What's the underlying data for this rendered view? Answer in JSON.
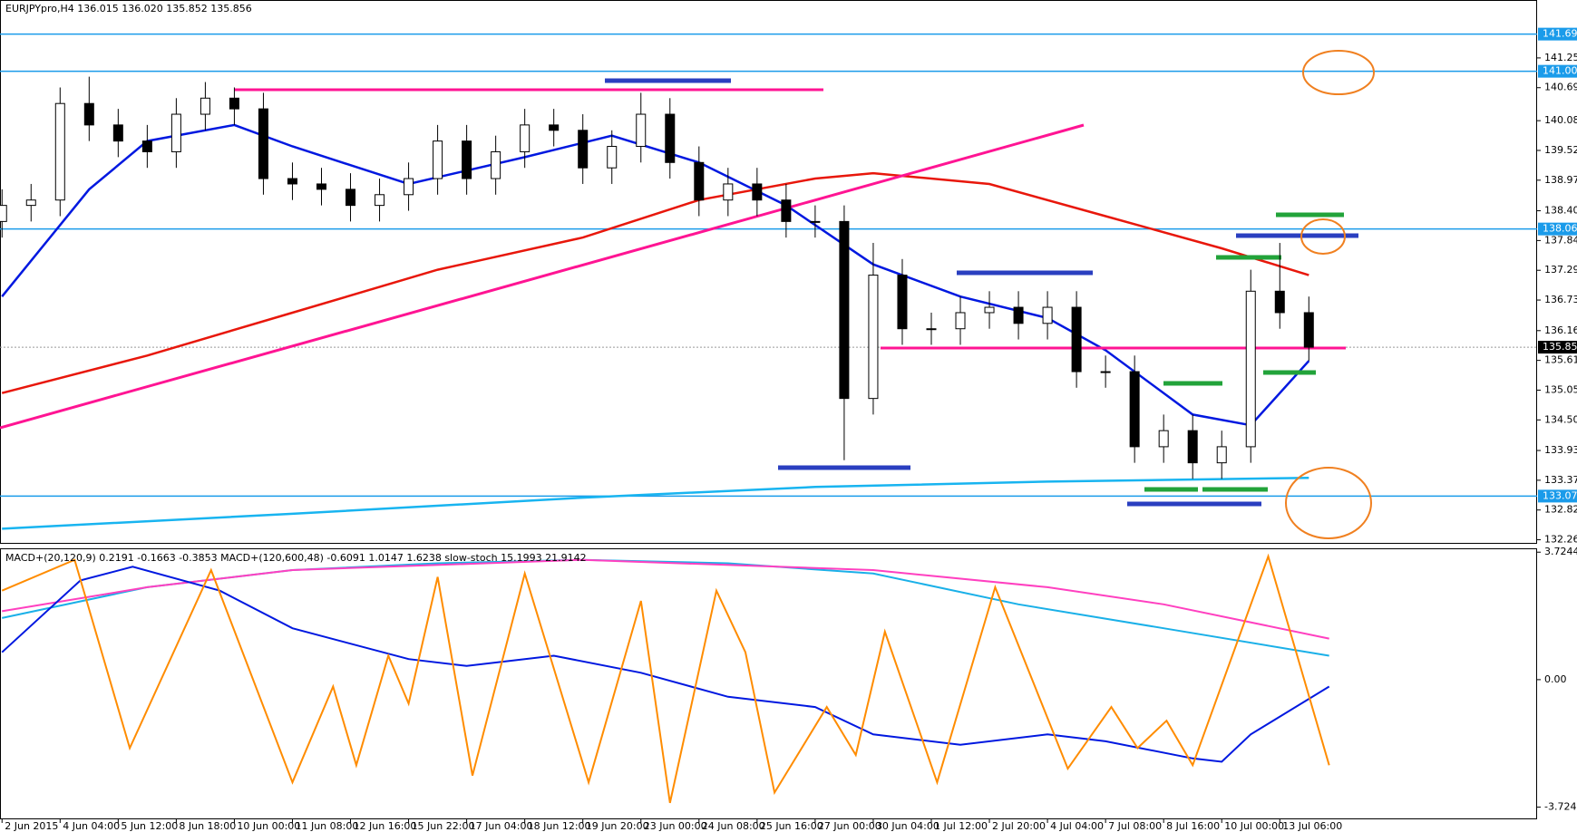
{
  "chart_data": [
    {
      "type": "candlestick",
      "title": "EURJPYpro,H4  136.015 136.020 135.852 135.856",
      "xlim": [
        -0.07,
        52.86
      ],
      "ylim": [
        132.19,
        142.33
      ],
      "yticks": [
        141.25,
        140.695,
        {
          "value": 140.08,
          "label": "140.080"
        },
        139.525,
        {
          "value": 138.97,
          "label": "138.970"
        },
        {
          "value": 138.4,
          "label": "138.400"
        },
        137.845,
        {
          "value": 137.29,
          "label": "137.290"
        },
        136.735,
        136.165,
        {
          "value": 135.61,
          "label": "135.610"
        },
        135.055,
        {
          "value": 134.5,
          "label": "134.500"
        },
        {
          "value": 133.93,
          "label": "133.930"
        },
        133.375,
        {
          "value": 132.82,
          "label": "132.820"
        },
        132.265
      ],
      "hlines": [
        {
          "value": 141.694,
          "color": "#1a9bea"
        },
        {
          "value": 141.001,
          "color": "#1a9bea"
        },
        {
          "value": 138.06,
          "label": "138.060",
          "color": "#1a9bea"
        },
        {
          "value": 135.856,
          "color": "#000000"
        },
        {
          "value": 133.079,
          "color": "#1a9bea"
        }
      ],
      "open": [
        138.2,
        138.5,
        138.6,
        140.4,
        140.0,
        139.7,
        139.5,
        140.2,
        140.5,
        140.3,
        139.0,
        138.9,
        138.8,
        138.5,
        138.7,
        139.0,
        139.7,
        139.0,
        139.5,
        140.0,
        139.9,
        139.2,
        139.6,
        140.2,
        139.3,
        138.6,
        138.9,
        138.6,
        138.2,
        138.2,
        134.9,
        137.2,
        136.2,
        136.2,
        136.5,
        136.6,
        136.3,
        136.6,
        135.4,
        135.4,
        134.0,
        134.3,
        133.7,
        134.0,
        136.9,
        136.5
      ],
      "high": [
        138.8,
        138.9,
        140.7,
        140.9,
        140.3,
        140.0,
        140.5,
        140.8,
        140.7,
        140.6,
        139.3,
        139.2,
        139.1,
        139.0,
        139.3,
        140.0,
        140.0,
        139.8,
        140.3,
        140.3,
        140.2,
        139.9,
        140.6,
        140.5,
        139.6,
        139.2,
        139.2,
        138.9,
        138.5,
        138.5,
        137.8,
        137.5,
        136.5,
        136.8,
        136.9,
        136.9,
        136.9,
        136.9,
        135.7,
        135.7,
        134.6,
        134.6,
        134.3,
        137.3,
        137.8,
        136.8
      ],
      "low": [
        137.9,
        138.2,
        138.3,
        139.7,
        139.4,
        139.2,
        139.2,
        139.9,
        140.0,
        138.7,
        138.6,
        138.5,
        138.2,
        138.2,
        138.4,
        138.7,
        138.7,
        138.7,
        139.2,
        139.6,
        138.9,
        138.9,
        139.3,
        139.0,
        138.3,
        138.3,
        138.3,
        137.9,
        137.9,
        133.75,
        134.6,
        135.9,
        135.9,
        135.9,
        136.2,
        136.0,
        136.0,
        135.1,
        135.1,
        133.7,
        133.7,
        133.4,
        133.4,
        133.7,
        136.2,
        135.6
      ],
      "close": [
        138.5,
        138.6,
        140.4,
        140.0,
        139.7,
        139.5,
        140.2,
        140.5,
        140.3,
        139.0,
        138.9,
        138.8,
        138.5,
        138.7,
        139.0,
        139.7,
        139.0,
        139.5,
        140.0,
        139.9,
        139.2,
        139.6,
        140.2,
        139.3,
        138.6,
        138.9,
        138.6,
        138.2,
        138.2,
        134.9,
        137.2,
        136.2,
        136.2,
        136.5,
        136.6,
        136.3,
        136.6,
        135.4,
        135.4,
        134.0,
        134.3,
        133.7,
        134.0,
        136.9,
        136.5,
        135.856
      ],
      "series": [
        {
          "color": "#e8170b",
          "x": [
            0,
            5,
            10,
            15,
            20,
            24,
            28,
            30,
            34,
            38,
            42,
            45
          ],
          "values": [
            135.0,
            135.7,
            136.5,
            137.3,
            137.9,
            138.6,
            139.0,
            139.1,
            138.9,
            138.3,
            137.7,
            137.2
          ]
        },
        {
          "color": "#0018e0",
          "x": [
            0,
            3,
            5,
            8,
            10,
            14,
            18,
            21,
            24,
            27,
            30,
            33,
            36,
            38,
            41,
            43,
            45
          ],
          "values": [
            136.8,
            138.8,
            139.7,
            140.0,
            139.6,
            138.9,
            139.4,
            139.8,
            139.3,
            138.5,
            137.4,
            136.8,
            136.4,
            135.8,
            134.6,
            134.4,
            135.6
          ]
        },
        {
          "color": "#18b4f0",
          "x": [
            0,
            10,
            20,
            28,
            36,
            45
          ],
          "values": [
            132.47,
            132.75,
            133.05,
            133.25,
            133.35,
            133.42
          ]
        }
      ]
    },
    {
      "type": "line",
      "title": "MACD+(20,120,9) 0.2191 -0.1663 -0.3853  MACD+(120,600,48) -0.6091 1.0147 1.6238  slow-stoch 15.1993 21.9142",
      "xlim": [
        -0.07,
        52.86
      ],
      "ylim": [
        -4.08,
        3.81
      ],
      "yticks": [
        3.7244,
        {
          "value": 0,
          "label": "0.00"
        },
        -3.7244
      ],
      "xticks": [
        {
          "value": 0,
          "label": "2 Jun 2015"
        },
        {
          "value": 2,
          "label": "4 Jun 04:00"
        },
        {
          "value": 4,
          "label": "5 Jun 12:00"
        },
        {
          "value": 6,
          "label": "8 Jun 18:00"
        },
        {
          "value": 8,
          "label": "10 Jun 00:00"
        },
        {
          "value": 10,
          "label": "11 Jun 08:00"
        },
        {
          "value": 12,
          "label": "12 Jun 16:00"
        },
        {
          "value": 14,
          "label": "15 Jun 22:00"
        },
        {
          "value": 16,
          "label": "17 Jun 04:00"
        },
        {
          "value": 18,
          "label": "18 Jun 12:00"
        },
        {
          "value": 20,
          "label": "19 Jun 20:00"
        },
        {
          "value": 22,
          "label": "23 Jun 00:00"
        },
        {
          "value": 24,
          "label": "24 Jun 08:00"
        },
        {
          "value": 26,
          "label": "25 Jun 16:00"
        },
        {
          "value": 28,
          "label": "27 Jun 00:00"
        },
        {
          "value": 30,
          "label": "30 Jun 04:00"
        },
        {
          "value": 32,
          "label": "1 Jul 12:00"
        },
        {
          "value": 34,
          "label": "2 Jul 20:00"
        },
        {
          "value": 36,
          "label": "4 Jul 04:00"
        },
        {
          "value": 38,
          "label": "7 Jul 08:00"
        },
        {
          "value": 40,
          "label": "8 Jul 16:00"
        },
        {
          "value": 42,
          "label": "10 Jul 00:00"
        },
        {
          "value": 44,
          "label": "13 Jul 06:00"
        }
      ],
      "series": [
        {
          "color": "#1ab0e8",
          "x": [
            0,
            5,
            10,
            15,
            20,
            25,
            30,
            35,
            40,
            45.7
          ],
          "values": [
            1.8,
            2.7,
            3.2,
            3.4,
            3.5,
            3.4,
            3.1,
            2.2,
            1.5,
            0.7
          ]
        },
        {
          "color": "#ff40c0",
          "x": [
            0,
            5,
            10,
            20,
            30,
            36,
            40,
            45.7
          ],
          "values": [
            2.0,
            2.7,
            3.2,
            3.5,
            3.2,
            2.7,
            2.2,
            1.2
          ]
        },
        {
          "color": "#0018e0",
          "x": [
            0,
            2.7,
            4.5,
            7.5,
            10,
            14,
            16,
            19,
            22,
            25,
            28,
            30,
            33,
            36,
            38,
            41,
            42,
            43,
            45.7
          ],
          "values": [
            0.8,
            2.9,
            3.3,
            2.6,
            1.5,
            0.6,
            0.4,
            0.7,
            0.2,
            -0.5,
            -0.8,
            -1.6,
            -1.9,
            -1.6,
            -1.8,
            -2.3,
            -2.4,
            -1.6,
            -0.2
          ]
        },
        {
          "color": "#ff8c00",
          "x": [
            0,
            2.5,
            4.4,
            7.2,
            10,
            11.4,
            12.2,
            13.3,
            14,
            15,
            16.2,
            18,
            20.2,
            22,
            23,
            24.6,
            25.6,
            26.6,
            28.4,
            29.4,
            30.4,
            32.2,
            34.2,
            36.7,
            38.2,
            39.1,
            40.1,
            41,
            43.6,
            45.7
          ],
          "values": [
            2.6,
            3.5,
            -2.0,
            3.2,
            -3.0,
            -0.2,
            -2.5,
            0.7,
            -0.7,
            3.0,
            -2.8,
            3.1,
            -3.0,
            2.3,
            -3.6,
            2.6,
            0.8,
            -3.3,
            -0.8,
            -2.2,
            1.4,
            -3.0,
            2.7,
            -2.6,
            -0.8,
            -2.0,
            -1.2,
            -2.5,
            3.6,
            -2.5
          ]
        }
      ]
    }
  ]
}
